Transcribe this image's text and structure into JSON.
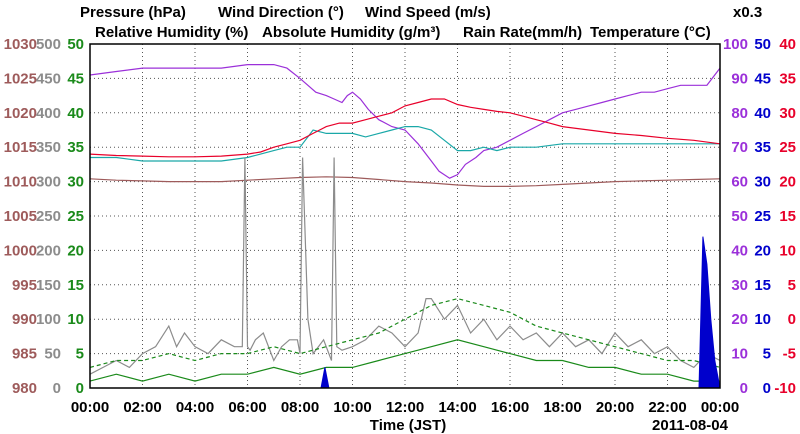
{
  "chart_data": {
    "type": "line",
    "header": {
      "row1": [
        {
          "text": "Pressure (hPa)",
          "color": "#9e5b5b"
        },
        {
          "text": "Wind Direction (°)",
          "color": "#8c8c8c"
        },
        {
          "text": "Wind Speed (m/s)",
          "color": "#1a8a1a"
        }
      ],
      "row2": [
        {
          "text": "Relative Humidity (%)",
          "color": "#9b30d9"
        },
        {
          "text": "Absolute Humidity (g/m³)",
          "color": "#1aa8a8"
        },
        {
          "text": "Rain Rate(mm/h)",
          "color": "#0000cc"
        },
        {
          "text": "Temperature (°C)",
          "color": "#e8002a"
        }
      ],
      "multiplier": {
        "text": "x0.3",
        "color": "#1aa8a8"
      }
    },
    "xlabel": "Time (JST)",
    "date_label": "2011-08-04",
    "x_ticks": [
      "00:00",
      "02:00",
      "04:00",
      "06:00",
      "08:00",
      "10:00",
      "12:00",
      "14:00",
      "16:00",
      "18:00",
      "20:00",
      "22:00",
      "00:00"
    ],
    "xlim": [
      0,
      24
    ],
    "axes": {
      "pressure": {
        "color": "#9e5b5b",
        "range": [
          980,
          1030
        ],
        "ticks": [
          "1030",
          "1025",
          "1020",
          "1015",
          "1010",
          "1005",
          "1000",
          "995",
          "990",
          "985",
          "980"
        ]
      },
      "wind_direction": {
        "color": "#8c8c8c",
        "range": [
          0,
          500
        ],
        "ticks": [
          "500",
          "450",
          "400",
          "350",
          "300",
          "250",
          "200",
          "150",
          "100",
          "50",
          "0"
        ]
      },
      "wind_speed": {
        "color": "#1a8a1a",
        "range": [
          0,
          50
        ],
        "ticks": [
          "50",
          "45",
          "40",
          "35",
          "30",
          "25",
          "20",
          "15",
          "10",
          "5",
          "0"
        ]
      },
      "relative_humidity": {
        "color": "#9b30d9",
        "range": [
          0,
          100
        ],
        "ticks": [
          "100",
          "90",
          "80",
          "70",
          "60",
          "50",
          "40",
          "30",
          "20",
          "10",
          "0"
        ]
      },
      "rain_rate": {
        "color": "#0000cc",
        "range": [
          0,
          50
        ],
        "ticks": [
          "50",
          "45",
          "40",
          "35",
          "30",
          "25",
          "20",
          "15",
          "10",
          "5",
          "0"
        ]
      },
      "temperature": {
        "color": "#e8002a",
        "range": [
          -10,
          40
        ],
        "ticks": [
          "40",
          "35",
          "30",
          "25",
          "20",
          "15",
          "10",
          "5",
          "0",
          "-5",
          "-10"
        ]
      }
    },
    "grid": true,
    "series": [
      {
        "name": "Relative Humidity (%)",
        "axis": "relative_humidity",
        "color": "#9b30d9",
        "x": [
          0,
          1,
          2,
          3,
          4,
          5,
          6,
          6.5,
          7,
          7.5,
          8,
          8.3,
          8.6,
          9,
          9.3,
          9.6,
          9.8,
          10,
          10.3,
          10.6,
          11,
          11.5,
          12,
          12.5,
          13,
          13.3,
          13.7,
          14,
          14.3,
          14.7,
          15,
          15.5,
          16,
          16.5,
          17,
          17.5,
          18,
          18.5,
          19,
          19.5,
          20,
          20.5,
          21,
          21.5,
          22,
          22.5,
          23,
          23.5,
          24
        ],
        "y": [
          91,
          92,
          93,
          93,
          93,
          93,
          94,
          94,
          94,
          93,
          90,
          88,
          86,
          85,
          84,
          83,
          85,
          86,
          84,
          81,
          78,
          76,
          75,
          71,
          66,
          63,
          61,
          62,
          65,
          67,
          69,
          70,
          72,
          74,
          76,
          78,
          80,
          81,
          82,
          83,
          84,
          85,
          86,
          86,
          87,
          88,
          88,
          88,
          93
        ]
      },
      {
        "name": "Absolute Humidity (g/m³) x0.3",
        "axis": "relative_humidity",
        "color": "#1aa8a8",
        "x": [
          0,
          1,
          2,
          3,
          4,
          5,
          6,
          6.5,
          7,
          7.5,
          8,
          8.5,
          9,
          9.5,
          10,
          10.5,
          11,
          11.5,
          12,
          12.5,
          13,
          13.5,
          14,
          14.5,
          15,
          15.5,
          16,
          17,
          18,
          19,
          20,
          21,
          22,
          23,
          24
        ],
        "y": [
          67,
          67,
          66,
          66,
          66,
          66,
          67,
          68,
          69,
          70,
          70,
          75,
          74,
          74,
          74,
          73,
          74,
          75,
          76,
          76,
          75,
          72,
          69,
          69,
          70,
          69,
          70,
          70,
          71,
          71,
          71,
          71,
          71,
          71,
          71
        ]
      },
      {
        "name": "Temperature (°C)",
        "axis": "temperature",
        "color": "#e8002a",
        "x": [
          0,
          1,
          2,
          3,
          4,
          5,
          6,
          6.5,
          7,
          7.5,
          8,
          8.5,
          9,
          9.5,
          10,
          10.5,
          11,
          11.5,
          12,
          12.5,
          13,
          13.5,
          14,
          14.5,
          15,
          15.5,
          16,
          16.5,
          17,
          17.5,
          18,
          19,
          20,
          21,
          22,
          23,
          24
        ],
        "y": [
          24,
          23.8,
          23.7,
          23.6,
          23.6,
          23.7,
          24,
          24.3,
          25,
          25.5,
          26,
          27,
          28,
          28.5,
          28.5,
          29,
          29.5,
          30,
          31,
          31.5,
          32,
          32,
          31.2,
          30.8,
          30.5,
          30.2,
          30,
          29.5,
          29,
          28.5,
          28,
          27.5,
          27,
          26.7,
          26.3,
          26,
          25.5
        ]
      },
      {
        "name": "Pressure (hPa)",
        "axis": "pressure",
        "color": "#9e5b5b",
        "x": [
          0,
          1,
          2,
          3,
          4,
          5,
          6,
          7,
          8,
          9,
          10,
          11,
          12,
          13,
          14,
          15,
          16,
          17,
          18,
          19,
          20,
          21,
          22,
          23,
          24
        ],
        "y": [
          1010.4,
          1010.2,
          1010.1,
          1010,
          1010,
          1010,
          1010.2,
          1010.4,
          1010.6,
          1010.7,
          1010.6,
          1010.3,
          1010,
          1009.8,
          1009.5,
          1009.3,
          1009.3,
          1009.4,
          1009.6,
          1009.8,
          1010,
          1010.1,
          1010.2,
          1010.3,
          1010.4
        ]
      },
      {
        "name": "Wind Direction (°)",
        "axis": "wind_direction",
        "color": "#8c8c8c",
        "x": [
          0,
          0.5,
          1,
          1.5,
          2,
          2.5,
          3,
          3.3,
          3.6,
          4,
          4.5,
          5,
          5.5,
          5.8,
          5.9,
          6,
          6.1,
          6.3,
          6.6,
          7,
          7.3,
          7.6,
          7.9,
          8,
          8.1,
          8.3,
          8.5,
          8.7,
          8.9,
          9.2,
          9.3,
          9.4,
          9.6,
          10,
          10.5,
          11,
          11.5,
          12,
          12.5,
          12.8,
          13,
          13.5,
          14,
          14.5,
          15,
          15.5,
          16,
          16.5,
          17,
          17.5,
          18,
          18.5,
          19,
          19.5,
          20,
          20.5,
          21,
          21.5,
          22,
          22.5,
          23,
          23.5,
          24
        ],
        "y": [
          20,
          30,
          40,
          30,
          50,
          60,
          90,
          60,
          80,
          60,
          50,
          70,
          60,
          60,
          335,
          60,
          55,
          70,
          80,
          40,
          60,
          70,
          70,
          50,
          335,
          100,
          50,
          60,
          70,
          40,
          335,
          60,
          55,
          60,
          70,
          90,
          80,
          60,
          80,
          130,
          130,
          100,
          120,
          80,
          100,
          70,
          90,
          70,
          80,
          60,
          80,
          60,
          70,
          50,
          80,
          60,
          70,
          50,
          60,
          40,
          30,
          50,
          40
        ]
      },
      {
        "name": "Wind Speed (m/s)",
        "axis": "wind_speed",
        "color": "#1a8a1a",
        "x": [
          0,
          1,
          2,
          3,
          4,
          5,
          6,
          7,
          8,
          9,
          10,
          11,
          12,
          13,
          14,
          15,
          16,
          17,
          18,
          19,
          20,
          21,
          22,
          23,
          24
        ],
        "y": [
          1,
          2,
          1,
          2,
          1,
          2,
          2,
          3,
          2,
          3,
          3,
          4,
          5,
          6,
          7,
          6,
          5,
          4,
          4,
          3,
          3,
          2,
          2,
          1,
          1
        ]
      },
      {
        "name": "Wind Speed peak (m/s)",
        "axis": "wind_speed",
        "color": "#1a8a1a",
        "dashed": true,
        "x": [
          0,
          1,
          2,
          3,
          4,
          5,
          6,
          7,
          8,
          9,
          10,
          11,
          12,
          13,
          14,
          15,
          16,
          17,
          18,
          19,
          20,
          21,
          22,
          23,
          24
        ],
        "y": [
          3,
          4,
          4,
          5,
          4,
          5,
          5,
          6,
          5,
          6,
          7,
          8,
          10,
          12,
          13,
          12,
          11,
          9,
          8,
          7,
          6,
          5,
          4,
          4,
          3
        ]
      }
    ],
    "rain_events": [
      {
        "axis": "rain_rate",
        "color": "#0000cc",
        "x": [
          8.8,
          8.95,
          9.1
        ],
        "y": [
          0,
          3,
          0
        ]
      },
      {
        "axis": "rain_rate",
        "color": "#0000cc",
        "x": [
          23.2,
          23.35,
          23.5,
          23.65,
          23.8,
          24
        ],
        "y": [
          0,
          22,
          18,
          10,
          4,
          0
        ]
      }
    ]
  }
}
